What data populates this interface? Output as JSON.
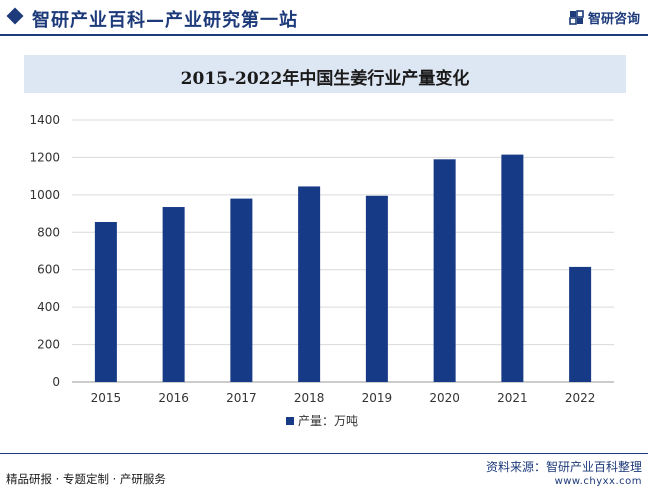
{
  "header": {
    "site_title": "智研产业百科—产业研究第一站",
    "logo_text": "智研咨询"
  },
  "colors": {
    "brand": "#1d3a7a",
    "bar": "#163a85",
    "title_band": "#dde6f3",
    "grid": "#d9d9d9"
  },
  "chart_data": {
    "type": "bar",
    "title": "2015-2022年中国生姜行业产量变化",
    "categories": [
      "2015",
      "2016",
      "2017",
      "2018",
      "2019",
      "2020",
      "2021",
      "2022"
    ],
    "series": [
      {
        "name": "产量：万吨",
        "values": [
          855,
          935,
          980,
          1045,
          995,
          1190,
          1215,
          615
        ]
      }
    ],
    "yticks": [
      0,
      200,
      400,
      600,
      800,
      1000,
      1200,
      1400
    ],
    "ylim": [
      0,
      1400
    ],
    "xlabel": "",
    "ylabel": "",
    "grid": true,
    "legend_position": "bottom"
  },
  "footer": {
    "left_text": "精品研报 · 专题定制 · 产研服务",
    "source": "资料来源：智研产业百科整理",
    "url": "www.chyxx.com"
  }
}
